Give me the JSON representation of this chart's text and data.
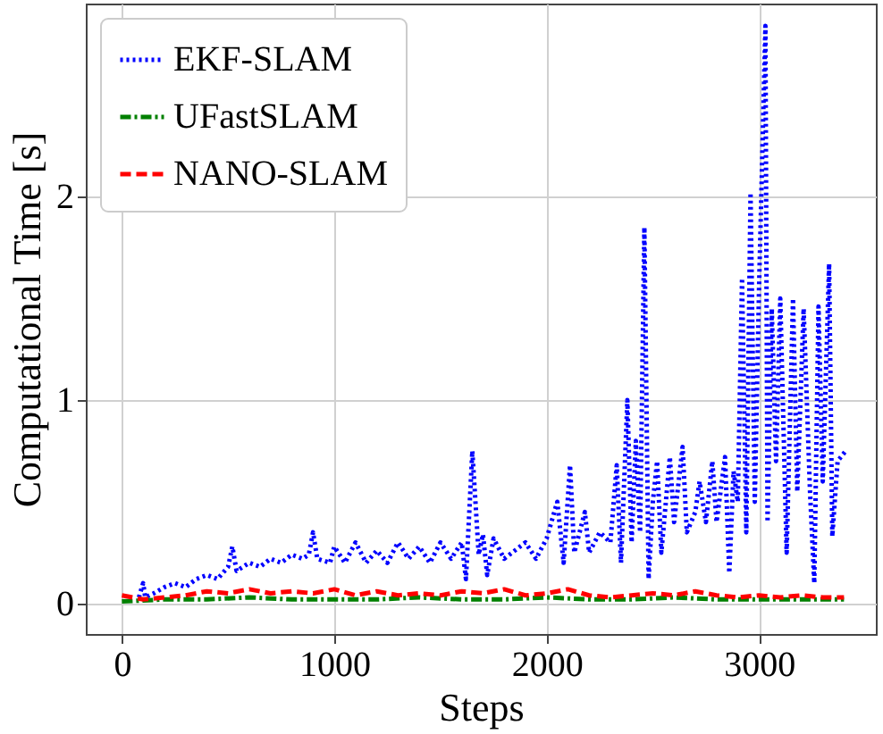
{
  "chart_data": {
    "type": "line",
    "xlabel": "Steps",
    "ylabel": "Computational Time [s]",
    "xlim": [
      -170,
      3550
    ],
    "ylim": [
      -0.15,
      2.95
    ],
    "xticks": [
      0,
      1000,
      2000,
      3000
    ],
    "yticks": [
      0,
      1,
      2
    ],
    "grid": true,
    "legend": "top left",
    "series": [
      {
        "name": "EKF-SLAM",
        "color": "#0000ff",
        "line_style": "dotted",
        "x": [
          80,
          100,
          110,
          150,
          200,
          250,
          300,
          350,
          400,
          450,
          500,
          520,
          540,
          600,
          650,
          700,
          750,
          800,
          850,
          880,
          900,
          920,
          980,
          1000,
          1050,
          1100,
          1150,
          1200,
          1250,
          1300,
          1350,
          1400,
          1450,
          1500,
          1550,
          1600,
          1620,
          1650,
          1680,
          1700,
          1720,
          1750,
          1800,
          1850,
          1900,
          1950,
          2000,
          2050,
          2080,
          2110,
          2130,
          2180,
          2200,
          2250,
          2300,
          2330,
          2350,
          2380,
          2400,
          2420,
          2440,
          2460,
          2480,
          2500,
          2520,
          2540,
          2580,
          2600,
          2640,
          2660,
          2700,
          2720,
          2750,
          2780,
          2800,
          2840,
          2860,
          2880,
          2900,
          2920,
          2940,
          2960,
          2980,
          3000,
          3030,
          3040,
          3060,
          3080,
          3100,
          3130,
          3160,
          3180,
          3210,
          3240,
          3260,
          3280,
          3300,
          3330,
          3345,
          3370,
          3408
        ],
        "values": [
          0.03,
          0.1,
          0.03,
          0.05,
          0.08,
          0.1,
          0.08,
          0.12,
          0.14,
          0.12,
          0.18,
          0.28,
          0.16,
          0.2,
          0.18,
          0.22,
          0.2,
          0.24,
          0.22,
          0.24,
          0.35,
          0.22,
          0.2,
          0.28,
          0.2,
          0.3,
          0.2,
          0.26,
          0.2,
          0.3,
          0.22,
          0.28,
          0.2,
          0.3,
          0.22,
          0.3,
          0.12,
          0.75,
          0.24,
          0.34,
          0.14,
          0.32,
          0.22,
          0.26,
          0.3,
          0.22,
          0.32,
          0.5,
          0.2,
          0.68,
          0.25,
          0.45,
          0.25,
          0.35,
          0.3,
          0.68,
          0.2,
          1.0,
          0.3,
          0.8,
          0.35,
          1.85,
          0.12,
          0.5,
          0.7,
          0.25,
          0.72,
          0.4,
          0.77,
          0.35,
          0.45,
          0.6,
          0.4,
          0.7,
          0.4,
          0.72,
          0.15,
          0.65,
          0.5,
          1.6,
          0.35,
          2.02,
          0.5,
          1.55,
          2.84,
          0.4,
          1.45,
          0.7,
          1.5,
          0.25,
          1.5,
          0.55,
          1.45,
          0.55,
          0.1,
          1.46,
          0.6,
          1.67,
          0.33,
          0.7,
          0.75
        ]
      },
      {
        "name": "UFastSLAM",
        "color": "#008000",
        "line_style": "dashdot",
        "x": [
          0,
          200,
          400,
          600,
          800,
          1000,
          1200,
          1400,
          1600,
          1800,
          2000,
          2200,
          2400,
          2600,
          2800,
          3000,
          3200,
          3400
        ],
        "values": [
          0.01,
          0.02,
          0.02,
          0.03,
          0.02,
          0.02,
          0.02,
          0.03,
          0.02,
          0.02,
          0.03,
          0.02,
          0.02,
          0.03,
          0.02,
          0.02,
          0.02,
          0.02
        ]
      },
      {
        "name": "NANO-SLAM",
        "color": "#ff0000",
        "line_style": "dashed",
        "x": [
          0,
          100,
          200,
          300,
          400,
          500,
          600,
          700,
          800,
          900,
          1000,
          1100,
          1200,
          1300,
          1400,
          1500,
          1600,
          1700,
          1800,
          1900,
          2000,
          2100,
          2200,
          2300,
          2400,
          2500,
          2600,
          2700,
          2800,
          2900,
          3000,
          3100,
          3200,
          3300,
          3400
        ],
        "values": [
          0.04,
          0.02,
          0.03,
          0.04,
          0.06,
          0.05,
          0.07,
          0.05,
          0.06,
          0.05,
          0.07,
          0.04,
          0.06,
          0.04,
          0.05,
          0.04,
          0.06,
          0.05,
          0.07,
          0.04,
          0.05,
          0.07,
          0.04,
          0.03,
          0.04,
          0.05,
          0.04,
          0.06,
          0.04,
          0.03,
          0.04,
          0.03,
          0.04,
          0.03,
          0.03
        ]
      }
    ]
  }
}
